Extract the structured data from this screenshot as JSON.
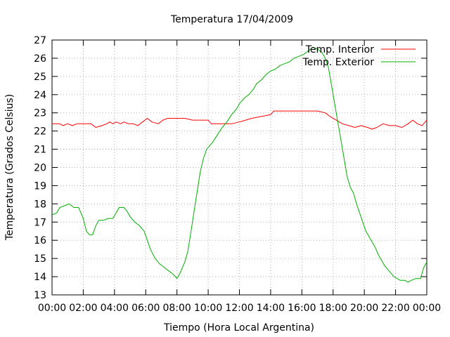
{
  "chart_data": {
    "type": "line",
    "title": "Temperatura 17/04/2009",
    "xlabel": "Tiempo (Hora Local Argentina)",
    "ylabel": "Temperatura (Grados Celsius)",
    "xlim": [
      0,
      24
    ],
    "ylim": [
      13,
      27
    ],
    "grid": true,
    "legend_position": "top-right",
    "x_ticks": [
      {
        "value": 0,
        "label": "00:00"
      },
      {
        "value": 2,
        "label": "02:00"
      },
      {
        "value": 4,
        "label": "04:00"
      },
      {
        "value": 6,
        "label": "06:00"
      },
      {
        "value": 8,
        "label": "08:00"
      },
      {
        "value": 10,
        "label": "10:00"
      },
      {
        "value": 12,
        "label": "12:00"
      },
      {
        "value": 14,
        "label": "14:00"
      },
      {
        "value": 16,
        "label": "16:00"
      },
      {
        "value": 18,
        "label": "18:00"
      },
      {
        "value": 20,
        "label": "20:00"
      },
      {
        "value": 22,
        "label": "22:00"
      },
      {
        "value": 24,
        "label": "00:00"
      }
    ],
    "y_ticks": [
      13,
      14,
      15,
      16,
      17,
      18,
      19,
      20,
      21,
      22,
      23,
      24,
      25,
      26,
      27
    ],
    "series": [
      {
        "name": "Temp. Interior",
        "color": "#ff0000",
        "points": [
          [
            0,
            22.4
          ],
          [
            0.5,
            22.4
          ],
          [
            0.7,
            22.3
          ],
          [
            1.0,
            22.4
          ],
          [
            1.3,
            22.3
          ],
          [
            1.6,
            22.4
          ],
          [
            2.0,
            22.4
          ],
          [
            2.5,
            22.4
          ],
          [
            2.8,
            22.2
          ],
          [
            3.2,
            22.3
          ],
          [
            3.5,
            22.4
          ],
          [
            3.7,
            22.5
          ],
          [
            3.9,
            22.4
          ],
          [
            4.1,
            22.5
          ],
          [
            4.4,
            22.4
          ],
          [
            4.6,
            22.5
          ],
          [
            4.9,
            22.4
          ],
          [
            5.2,
            22.4
          ],
          [
            5.5,
            22.3
          ],
          [
            5.8,
            22.5
          ],
          [
            6.1,
            22.7
          ],
          [
            6.4,
            22.5
          ],
          [
            6.8,
            22.4
          ],
          [
            7.1,
            22.6
          ],
          [
            7.4,
            22.7
          ],
          [
            8.0,
            22.7
          ],
          [
            8.5,
            22.7
          ],
          [
            9.0,
            22.6
          ],
          [
            9.5,
            22.6
          ],
          [
            10.0,
            22.6
          ],
          [
            10.2,
            22.4
          ],
          [
            10.8,
            22.4
          ],
          [
            11.5,
            22.4
          ],
          [
            12.0,
            22.5
          ],
          [
            12.4,
            22.6
          ],
          [
            12.8,
            22.7
          ],
          [
            13.4,
            22.8
          ],
          [
            14.0,
            22.9
          ],
          [
            14.2,
            23.1
          ],
          [
            15.0,
            23.1
          ],
          [
            16.0,
            23.1
          ],
          [
            17.0,
            23.1
          ],
          [
            17.5,
            23.0
          ],
          [
            17.8,
            22.8
          ],
          [
            18.2,
            22.6
          ],
          [
            18.6,
            22.4
          ],
          [
            19.0,
            22.3
          ],
          [
            19.4,
            22.2
          ],
          [
            19.8,
            22.3
          ],
          [
            20.2,
            22.2
          ],
          [
            20.5,
            22.1
          ],
          [
            20.8,
            22.2
          ],
          [
            21.2,
            22.4
          ],
          [
            21.6,
            22.3
          ],
          [
            22.0,
            22.3
          ],
          [
            22.4,
            22.2
          ],
          [
            22.8,
            22.4
          ],
          [
            23.1,
            22.6
          ],
          [
            23.4,
            22.4
          ],
          [
            23.7,
            22.3
          ],
          [
            24.0,
            22.6
          ]
        ]
      },
      {
        "name": "Temp. Exterior",
        "color": "#00b000",
        "points": [
          [
            0,
            17.4
          ],
          [
            0.3,
            17.5
          ],
          [
            0.5,
            17.8
          ],
          [
            0.8,
            17.9
          ],
          [
            1.1,
            18.0
          ],
          [
            1.4,
            17.8
          ],
          [
            1.7,
            17.8
          ],
          [
            2.0,
            17.2
          ],
          [
            2.2,
            16.5
          ],
          [
            2.4,
            16.3
          ],
          [
            2.6,
            16.3
          ],
          [
            2.8,
            16.8
          ],
          [
            3.0,
            17.1
          ],
          [
            3.3,
            17.1
          ],
          [
            3.6,
            17.2
          ],
          [
            3.9,
            17.2
          ],
          [
            4.1,
            17.5
          ],
          [
            4.3,
            17.8
          ],
          [
            4.6,
            17.8
          ],
          [
            4.8,
            17.6
          ],
          [
            5.0,
            17.3
          ],
          [
            5.3,
            17.0
          ],
          [
            5.6,
            16.8
          ],
          [
            5.9,
            16.5
          ],
          [
            6.1,
            16.0
          ],
          [
            6.3,
            15.5
          ],
          [
            6.6,
            15.0
          ],
          [
            6.9,
            14.7
          ],
          [
            7.2,
            14.5
          ],
          [
            7.5,
            14.3
          ],
          [
            7.8,
            14.1
          ],
          [
            8.0,
            13.9
          ],
          [
            8.2,
            14.2
          ],
          [
            8.5,
            14.8
          ],
          [
            8.7,
            15.4
          ],
          [
            8.9,
            16.5
          ],
          [
            9.1,
            17.6
          ],
          [
            9.3,
            18.7
          ],
          [
            9.5,
            19.8
          ],
          [
            9.7,
            20.5
          ],
          [
            9.9,
            21.0
          ],
          [
            10.1,
            21.2
          ],
          [
            10.3,
            21.4
          ],
          [
            10.6,
            21.8
          ],
          [
            10.9,
            22.2
          ],
          [
            11.2,
            22.5
          ],
          [
            11.5,
            22.9
          ],
          [
            11.8,
            23.2
          ],
          [
            12.0,
            23.5
          ],
          [
            12.3,
            23.8
          ],
          [
            12.6,
            24.0
          ],
          [
            12.9,
            24.3
          ],
          [
            13.1,
            24.6
          ],
          [
            13.4,
            24.8
          ],
          [
            13.7,
            25.1
          ],
          [
            14.0,
            25.3
          ],
          [
            14.3,
            25.4
          ],
          [
            14.6,
            25.6
          ],
          [
            14.9,
            25.7
          ],
          [
            15.2,
            25.8
          ],
          [
            15.5,
            26.0
          ],
          [
            15.8,
            26.1
          ],
          [
            16.1,
            26.2
          ],
          [
            16.4,
            26.4
          ],
          [
            16.7,
            26.6
          ],
          [
            17.0,
            26.5
          ],
          [
            17.3,
            26.3
          ],
          [
            17.5,
            26.0
          ],
          [
            17.7,
            25.5
          ],
          [
            17.9,
            24.5
          ],
          [
            18.1,
            23.5
          ],
          [
            18.3,
            22.5
          ],
          [
            18.5,
            21.5
          ],
          [
            18.7,
            20.5
          ],
          [
            18.9,
            19.5
          ],
          [
            19.1,
            18.9
          ],
          [
            19.3,
            18.6
          ],
          [
            19.5,
            18.0
          ],
          [
            19.7,
            17.5
          ],
          [
            19.9,
            17.0
          ],
          [
            20.1,
            16.5
          ],
          [
            20.3,
            16.2
          ],
          [
            20.5,
            15.9
          ],
          [
            20.7,
            15.6
          ],
          [
            20.9,
            15.2
          ],
          [
            21.1,
            14.9
          ],
          [
            21.3,
            14.6
          ],
          [
            21.5,
            14.4
          ],
          [
            21.7,
            14.2
          ],
          [
            21.9,
            14.0
          ],
          [
            22.1,
            13.9
          ],
          [
            22.3,
            13.8
          ],
          [
            22.6,
            13.8
          ],
          [
            22.8,
            13.7
          ],
          [
            23.0,
            13.8
          ],
          [
            23.3,
            13.9
          ],
          [
            23.6,
            13.9
          ],
          [
            23.8,
            14.5
          ],
          [
            24.0,
            14.8
          ]
        ]
      }
    ]
  }
}
